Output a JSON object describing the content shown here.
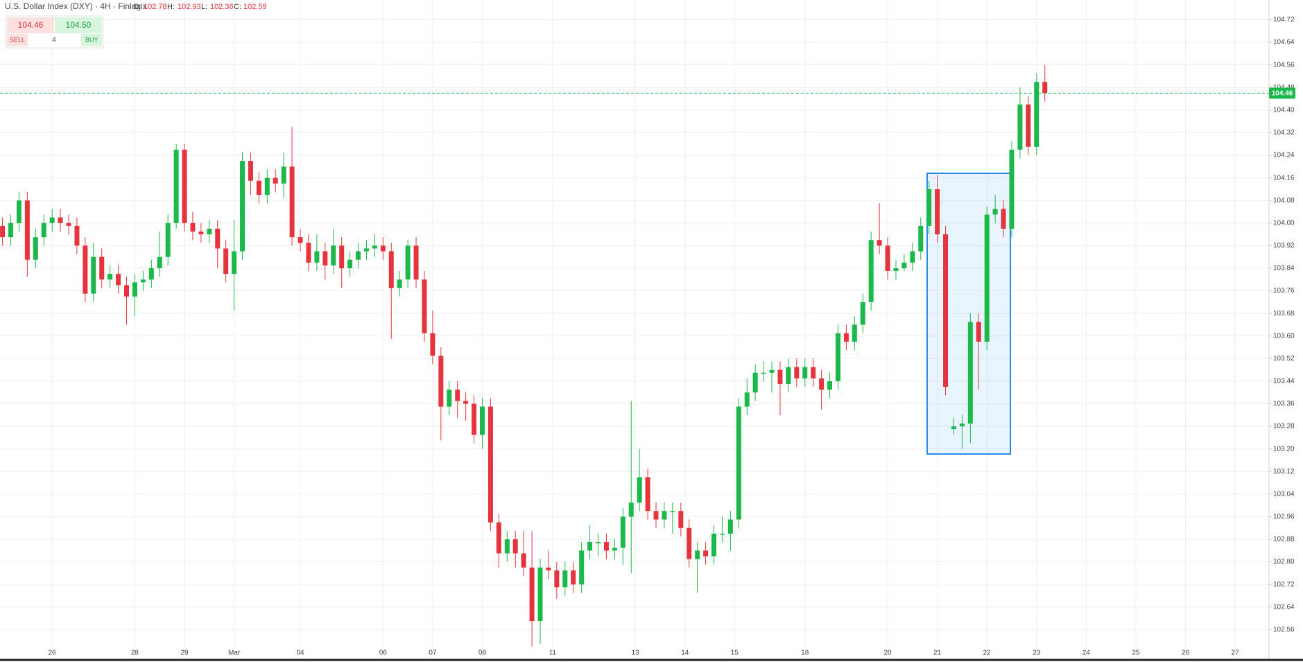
{
  "header": {
    "title": "U.S. Dollar Index (DXY) · 4H · Finlogix",
    "fields": [
      {
        "label": "O:",
        "value": 102.78
      },
      {
        "label": "H:",
        "value": 102.93
      },
      {
        "label": "L:",
        "value": 102.36
      },
      {
        "label": "C:",
        "value": 102.59
      }
    ]
  },
  "trade_panel": {
    "sell": {
      "price": "104.46",
      "label": "SELL"
    },
    "quantity": "4",
    "buy": {
      "price": "104.50",
      "label": "BUY"
    }
  },
  "chart_data": {
    "type": "candlestick",
    "up_color": "#1cb84b",
    "down_color": "#e4343d",
    "grid": true,
    "last_price": 104.46,
    "last_price_color": "#1cb84b",
    "xlim": [
      -0.3,
      153.1
    ],
    "ylim": [
      102.47,
      104.79
    ],
    "xticks": [
      {
        "value": 6,
        "label": "26"
      },
      {
        "value": 16,
        "label": "28"
      },
      {
        "value": 22,
        "label": "29"
      },
      {
        "value": 28,
        "label": "Mar"
      },
      {
        "value": 36,
        "label": "04"
      },
      {
        "value": 46,
        "label": "06"
      },
      {
        "value": 52,
        "label": "07"
      },
      {
        "value": 58,
        "label": "08"
      },
      {
        "value": 66.5,
        "label": "11"
      },
      {
        "value": 76.5,
        "label": "13"
      },
      {
        "value": 82.5,
        "label": "14"
      },
      {
        "value": 88.5,
        "label": "15"
      },
      {
        "value": 97,
        "label": "18"
      },
      {
        "value": 107,
        "label": "20"
      },
      {
        "value": 113,
        "label": "21"
      },
      {
        "value": 119,
        "label": "22"
      },
      {
        "value": 125,
        "label": "23"
      },
      {
        "value": 131,
        "label": "24"
      },
      {
        "value": 137,
        "label": "25"
      },
      {
        "value": 143,
        "label": "26"
      },
      {
        "value": 149,
        "label": "27"
      }
    ],
    "yticks": [
      102.56,
      102.64,
      102.72,
      {
        "value": 102.8,
        "label": "102.80"
      },
      102.88,
      102.96,
      103.04,
      103.12,
      {
        "value": 103.2,
        "label": "103.20"
      },
      103.28,
      103.36,
      103.44,
      103.52,
      {
        "value": 103.6,
        "label": "103.60"
      },
      103.68,
      103.76,
      103.84,
      103.92,
      {
        "value": 104,
        "label": "104.00"
      },
      104.08,
      104.16,
      104.24,
      104.32,
      {
        "value": 104.4,
        "label": "104.40"
      },
      104.48,
      104.56,
      104.64,
      104.72
    ],
    "x": [
      0,
      1,
      2,
      3,
      4,
      5,
      6,
      7,
      8,
      9,
      10,
      11,
      12,
      13,
      14,
      15,
      16,
      17,
      18,
      19,
      20,
      21,
      22,
      23,
      24,
      25,
      26,
      27,
      28,
      29,
      30,
      31,
      32,
      33,
      34,
      35,
      36,
      37,
      38,
      39,
      40,
      41,
      42,
      43,
      44,
      45,
      46,
      47,
      48,
      49,
      50,
      51,
      52,
      53,
      54,
      55,
      56,
      57,
      58,
      59,
      60,
      61,
      62,
      63,
      64,
      65,
      66,
      67,
      68,
      69,
      70,
      71,
      72,
      73,
      74,
      75,
      76,
      77,
      78,
      79,
      80,
      81,
      82,
      83,
      84,
      85,
      86,
      87,
      88,
      89,
      90,
      91,
      92,
      93,
      94,
      95,
      96,
      97,
      98,
      99,
      100,
      101,
      102,
      103,
      104,
      105,
      106,
      107,
      108,
      109,
      110,
      111,
      112,
      113,
      114,
      115,
      116,
      117,
      118,
      119,
      120,
      121,
      122,
      123,
      124,
      125,
      126
    ],
    "open": [
      103.99,
      103.95,
      104.0,
      104.08,
      103.87,
      103.95,
      104.0,
      104.02,
      104.0,
      103.99,
      103.92,
      103.75,
      103.88,
      103.8,
      103.82,
      103.78,
      103.74,
      103.79,
      103.8,
      103.84,
      103.88,
      104.0,
      104.26,
      104.0,
      103.97,
      103.96,
      103.98,
      103.91,
      103.82,
      103.9,
      104.22,
      104.15,
      104.1,
      104.16,
      104.14,
      104.2,
      103.95,
      103.93,
      103.86,
      103.9,
      103.85,
      103.92,
      103.84,
      103.87,
      103.9,
      103.91,
      103.92,
      103.9,
      103.77,
      103.8,
      103.92,
      103.8,
      103.61,
      103.53,
      103.35,
      103.41,
      103.37,
      103.36,
      103.25,
      103.35,
      102.94,
      102.83,
      102.88,
      102.83,
      102.78,
      102.59,
      102.78,
      102.77,
      102.71,
      102.77,
      102.72,
      102.84,
      102.87,
      102.87,
      102.84,
      102.85,
      102.96,
      103.01,
      103.1,
      102.98,
      102.95,
      102.98,
      102.98,
      102.92,
      102.81,
      102.84,
      102.82,
      102.9,
      102.9,
      102.95,
      103.35,
      103.4,
      103.47,
      103.47,
      103.48,
      103.43,
      103.49,
      103.45,
      103.49,
      103.45,
      103.41,
      103.44,
      103.61,
      103.58,
      103.64,
      103.72,
      103.94,
      103.92,
      103.83,
      103.84,
      103.86,
      103.9,
      103.99,
      104.12,
      103.96,
      103.27,
      103.28,
      103.29,
      103.65,
      103.58,
      104.03,
      104.05,
      103.98,
      104.26,
      104.42,
      104.27,
      104.5
    ],
    "high": [
      104.02,
      104.03,
      104.11,
      104.11,
      103.98,
      104.03,
      104.05,
      104.05,
      104.03,
      104.02,
      103.95,
      103.93,
      103.91,
      103.85,
      103.85,
      103.81,
      103.82,
      103.83,
      103.87,
      103.97,
      104.03,
      104.28,
      104.28,
      104.04,
      104.0,
      104.01,
      104.01,
      103.94,
      104.01,
      104.25,
      104.25,
      104.18,
      104.19,
      104.19,
      104.25,
      104.34,
      103.98,
      103.96,
      103.96,
      103.93,
      103.98,
      103.95,
      103.9,
      103.93,
      103.94,
      103.96,
      103.95,
      103.93,
      103.83,
      103.94,
      103.95,
      103.83,
      103.69,
      103.56,
      103.44,
      103.44,
      103.4,
      103.39,
      103.38,
      103.38,
      102.97,
      102.91,
      102.91,
      102.91,
      102.91,
      102.81,
      102.84,
      102.8,
      102.8,
      102.8,
      102.87,
      102.93,
      102.9,
      102.9,
      102.88,
      102.99,
      103.37,
      103.2,
      103.13,
      103.01,
      103.01,
      103.01,
      103.01,
      102.95,
      102.87,
      102.87,
      102.93,
      102.96,
      102.98,
      103.38,
      103.45,
      103.5,
      103.51,
      103.51,
      103.51,
      103.52,
      103.52,
      103.52,
      103.52,
      103.48,
      103.47,
      103.64,
      103.64,
      103.67,
      103.75,
      103.97,
      104.07,
      103.95,
      103.87,
      103.89,
      103.93,
      104.02,
      104.15,
      104.17,
      103.99,
      103.31,
      103.32,
      103.68,
      103.68,
      104.06,
      104.1,
      104.08,
      104.29,
      104.48,
      104.45,
      104.53,
      104.56
    ],
    "low": [
      103.92,
      103.92,
      103.97,
      103.81,
      103.84,
      103.92,
      103.97,
      103.97,
      103.96,
      103.89,
      103.72,
      103.72,
      103.77,
      103.77,
      103.75,
      103.64,
      103.67,
      103.76,
      103.77,
      103.81,
      103.85,
      103.98,
      103.97,
      103.94,
      103.93,
      103.93,
      103.84,
      103.79,
      103.69,
      103.87,
      104.1,
      104.07,
      104.07,
      104.11,
      104.09,
      103.92,
      103.9,
      103.83,
      103.83,
      103.8,
      103.82,
      103.77,
      103.81,
      103.84,
      103.87,
      103.88,
      103.87,
      103.59,
      103.74,
      103.77,
      103.77,
      103.58,
      103.5,
      103.23,
      103.32,
      103.31,
      103.3,
      103.22,
      103.2,
      102.91,
      102.78,
      102.8,
      102.78,
      102.75,
      102.5,
      102.51,
      102.74,
      102.67,
      102.68,
      102.69,
      102.69,
      102.81,
      102.82,
      102.81,
      102.81,
      102.79,
      102.76,
      102.98,
      102.95,
      102.92,
      102.92,
      102.9,
      102.89,
      102.78,
      102.69,
      102.79,
      102.79,
      102.87,
      102.84,
      102.92,
      103.32,
      103.37,
      103.44,
      103.4,
      103.32,
      103.4,
      103.42,
      103.42,
      103.42,
      103.34,
      103.38,
      103.41,
      103.55,
      103.55,
      103.61,
      103.69,
      103.89,
      103.8,
      103.8,
      103.83,
      103.83,
      103.87,
      103.96,
      103.93,
      103.39,
      103.25,
      103.2,
      103.22,
      103.41,
      103.55,
      104.0,
      103.95,
      103.95,
      104.23,
      104.24,
      104.24,
      104.43
    ],
    "close": [
      103.95,
      104.0,
      104.08,
      103.87,
      103.95,
      104.0,
      104.02,
      104.0,
      103.99,
      103.92,
      103.75,
      103.88,
      103.8,
      103.82,
      103.78,
      103.74,
      103.79,
      103.8,
      103.84,
      103.88,
      104.0,
      104.26,
      104.0,
      103.97,
      103.96,
      103.98,
      103.91,
      103.82,
      103.9,
      104.22,
      104.15,
      104.1,
      104.16,
      104.14,
      104.2,
      103.95,
      103.93,
      103.86,
      103.9,
      103.85,
      103.92,
      103.84,
      103.87,
      103.9,
      103.91,
      103.92,
      103.9,
      103.77,
      103.8,
      103.92,
      103.8,
      103.61,
      103.53,
      103.35,
      103.41,
      103.37,
      103.36,
      103.25,
      103.35,
      102.94,
      102.83,
      102.88,
      102.83,
      102.78,
      102.59,
      102.78,
      102.77,
      102.71,
      102.77,
      102.72,
      102.84,
      102.87,
      102.87,
      102.84,
      102.85,
      102.96,
      103.01,
      103.1,
      102.98,
      102.95,
      102.98,
      102.98,
      102.92,
      102.81,
      102.84,
      102.82,
      102.9,
      102.9,
      102.95,
      103.35,
      103.4,
      103.47,
      103.47,
      103.48,
      103.43,
      103.49,
      103.45,
      103.49,
      103.45,
      103.41,
      103.44,
      103.61,
      103.58,
      103.64,
      103.72,
      103.94,
      103.92,
      103.83,
      103.84,
      103.86,
      103.9,
      103.99,
      104.12,
      103.96,
      103.42,
      103.28,
      103.29,
      103.65,
      103.58,
      104.03,
      104.05,
      103.98,
      104.26,
      104.42,
      104.27,
      104.5,
      104.46
    ]
  }
}
